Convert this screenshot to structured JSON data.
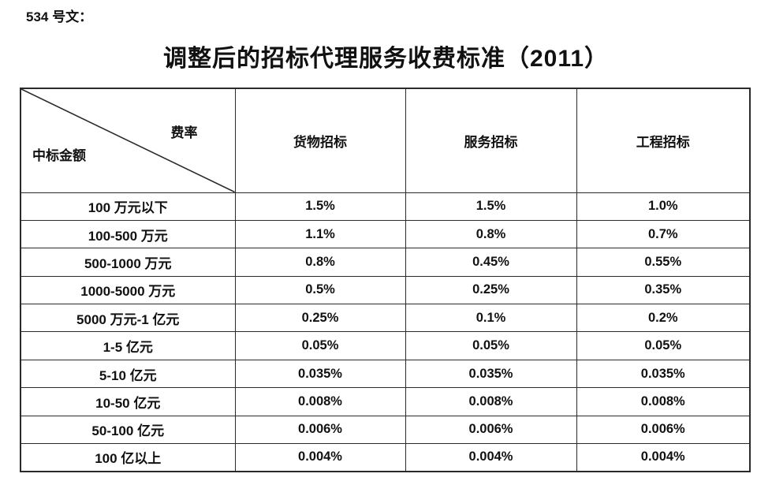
{
  "page": {
    "doc_label": "534 号文：",
    "title": "调整后的招标代理服务收费标准（2011）"
  },
  "table": {
    "corner_top_right": "费率",
    "corner_bottom_left": "中标金额",
    "columns": [
      "货物招标",
      "服务招标",
      "工程招标"
    ],
    "rows": [
      {
        "amount": "100 万元以下",
        "values": [
          "1.5%",
          "1.5%",
          "1.0%"
        ]
      },
      {
        "amount": "100-500 万元",
        "values": [
          "1.1%",
          "0.8%",
          "0.7%"
        ]
      },
      {
        "amount": "500-1000 万元",
        "values": [
          "0.8%",
          "0.45%",
          "0.55%"
        ]
      },
      {
        "amount": "1000-5000 万元",
        "values": [
          "0.5%",
          "0.25%",
          "0.35%"
        ]
      },
      {
        "amount": "5000 万元-1 亿元",
        "values": [
          "0.25%",
          "0.1%",
          "0.2%"
        ]
      },
      {
        "amount": "1-5 亿元",
        "values": [
          "0.05%",
          "0.05%",
          "0.05%"
        ]
      },
      {
        "amount": "5-10 亿元",
        "values": [
          "0.035%",
          "0.035%",
          "0.035%"
        ]
      },
      {
        "amount": "10-50 亿元",
        "values": [
          "0.008%",
          "0.008%",
          "0.008%"
        ]
      },
      {
        "amount": "50-100 亿元",
        "values": [
          "0.006%",
          "0.006%",
          "0.006%"
        ]
      },
      {
        "amount": "100 亿以上",
        "values": [
          "0.004%",
          "0.004%",
          "0.004%"
        ]
      }
    ]
  },
  "colors": {
    "background": "#ffffff",
    "text": "#111111",
    "border": "#2a2a2a"
  }
}
